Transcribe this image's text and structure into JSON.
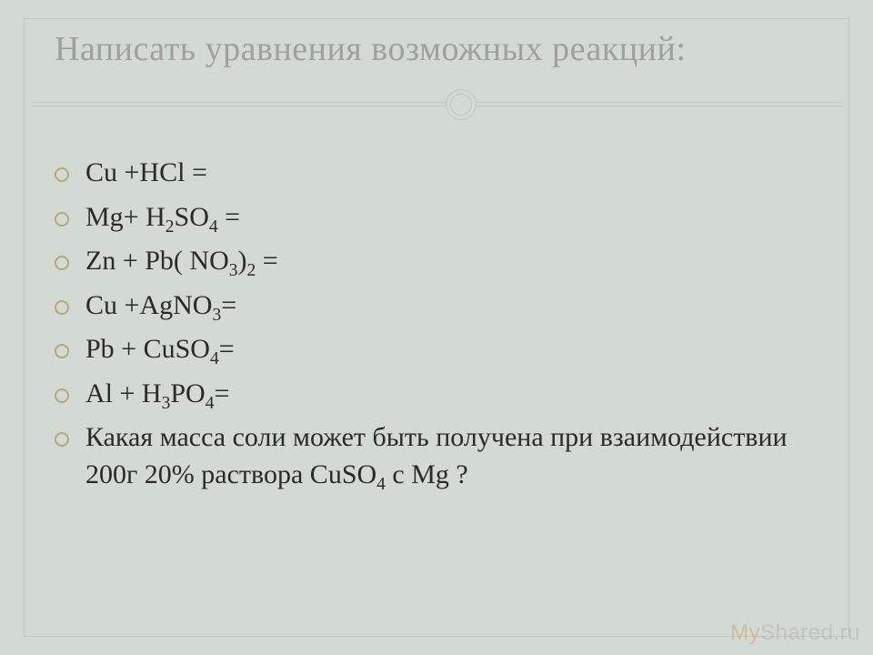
{
  "background_color": "#d3d9d3",
  "frame_border_color": "#c0c6c0",
  "title": {
    "text": "Написать уравнения возможных реакций:",
    "color": "#a0a0a0",
    "fontsize": 38
  },
  "bullet_color": "#b5a97a",
  "text_color": "#2a2a2a",
  "item_fontsize": 30,
  "items": [
    {
      "html": "Cu +HCl ="
    },
    {
      "html": "Mg+ H<sub>2</sub>SO<sub>4</sub> ="
    },
    {
      "html": "Zn + Pb( NO<sub>3</sub>)<sub>2</sub> ="
    },
    {
      "html": "Cu +AgNO<sub>3</sub>="
    },
    {
      "html": "Pb + CuSO<sub>4</sub>="
    },
    {
      "html": "Al + H<sub>3</sub>PO<sub>4</sub>="
    },
    {
      "html": "Какая масса соли может быть получена при взаимодействии 200г 20% раствора CuSO<sub>4</sub> с Mg ?"
    }
  ],
  "watermark": {
    "prefix": "My",
    "suffix": "Shared.ru"
  }
}
